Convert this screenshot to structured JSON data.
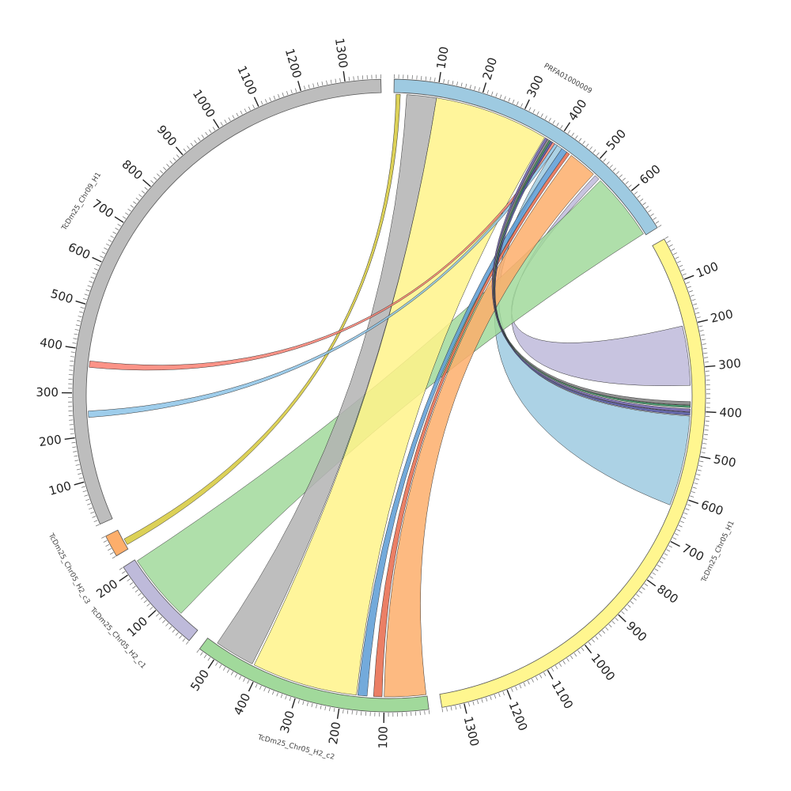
{
  "chart_data": {
    "type": "chord",
    "minor_tick_interval": 10,
    "segments": [
      {
        "name": "PRFA01000009",
        "length": 700,
        "color": "#9ecae1",
        "ticks": [
          100,
          200,
          300,
          400,
          500,
          600
        ]
      },
      {
        "name": "TcDm25_Chr05_H1",
        "length": 1350,
        "color": "#fff68f",
        "ticks": [
          100,
          200,
          300,
          400,
          500,
          600,
          700,
          800,
          900,
          1000,
          1100,
          1200,
          1300
        ]
      },
      {
        "name": "TcDm25_Chr05_H2_c2",
        "length": 540,
        "color": "#a1d99b",
        "ticks": [
          100,
          200,
          300,
          400,
          500
        ]
      },
      {
        "name": "TcDm25_Chr05_H2_c1",
        "length": 220,
        "color": "#bebada",
        "ticks": [
          100,
          200
        ]
      },
      {
        "name": "TcDm25_Chr05_H2_c3",
        "length": 50,
        "color": "#fdae6b",
        "ticks": []
      },
      {
        "name": "TcDm25_Chr09_H1",
        "length": 1380,
        "color": "#bdbdbd",
        "ticks": [
          100,
          200,
          300,
          400,
          500,
          600,
          700,
          800,
          900,
          1000,
          1100,
          1200,
          1300
        ]
      }
    ],
    "links": [
      {
        "source": "PRFA01000009",
        "source_range": [
          405,
          418
        ],
        "target": "TcDm25_Chr05_H1",
        "target_range": [
          412,
          625
        ],
        "color": "#9ecae1"
      },
      {
        "source": "PRFA01000009",
        "source_range": [
          518,
          530
        ],
        "target": "TcDm25_Chr05_H1",
        "target_range": [
          200,
          340
        ],
        "color": "#bebada"
      },
      {
        "source": "PRFA01000009",
        "source_range": [
          535,
          695
        ],
        "target": "TcDm25_Chr05_H2_c1",
        "target_range": [
          55,
          215
        ],
        "color": "#a1d99b"
      },
      {
        "source": "PRFA01000009",
        "source_range": [
          30,
          100
        ],
        "target": "TcDm25_Chr05_H2_c2",
        "target_range": [
          420,
          515
        ],
        "color": "#b3b3b3"
      },
      {
        "source": "PRFA01000009",
        "source_range": [
          100,
          370
        ],
        "target": "TcDm25_Chr05_H2_c2",
        "target_range": [
          165,
          415
        ],
        "color": "#fff38a"
      },
      {
        "source": "PRFA01000009",
        "source_range": [
          445,
          513
        ],
        "target": "TcDm25_Chr05_H2_c2",
        "target_range": [
          2,
          100
        ],
        "color": "#fdae6b"
      },
      {
        "source": "PRFA01000009",
        "source_range": [
          432,
          440
        ],
        "target": "TcDm25_Chr05_H2_c2",
        "target_range": [
          105,
          125
        ],
        "color": "#e8694a"
      },
      {
        "source": "PRFA01000009",
        "source_range": [
          418,
          432
        ],
        "target": "TcDm25_Chr05_H2_c2",
        "target_range": [
          140,
          162
        ],
        "color": "#5b9bd5"
      },
      {
        "source": "PRFA01000009",
        "source_range": [
          5,
          15
        ],
        "target": "TcDm25_Chr05_H2_c3",
        "target_range": [
          10,
          25
        ],
        "color": "#d6c93a"
      },
      {
        "source": "PRFA01000009",
        "source_range": [
          392,
          398
        ],
        "target": "TcDm25_Chr09_H1",
        "target_range": [
          360,
          375
        ],
        "color": "#fb8072"
      },
      {
        "source": "PRFA01000009",
        "source_range": [
          398,
          405
        ],
        "target": "TcDm25_Chr09_H1",
        "target_range": [
          243,
          258
        ],
        "color": "#8dc4e8"
      },
      {
        "source": "PRFA01000009",
        "source_range": [
          372,
          378
        ],
        "target": "TcDm25_Chr05_H1",
        "target_range": [
          395,
          402
        ],
        "color": "#6a5aa8"
      },
      {
        "source": "PRFA01000009",
        "source_range": [
          378,
          383
        ],
        "target": "TcDm25_Chr05_H1",
        "target_range": [
          378,
          386
        ],
        "color": "#7f7f7f"
      },
      {
        "source": "PRFA01000009",
        "source_range": [
          383,
          387
        ],
        "target": "TcDm25_Chr05_H1",
        "target_range": [
          387,
          392
        ],
        "color": "#2e8b57"
      },
      {
        "source": "PRFA01000009",
        "source_range": [
          387,
          392
        ],
        "target": "TcDm25_Chr05_H1",
        "target_range": [
          403,
          410
        ],
        "color": "#4b4f9e"
      }
    ]
  }
}
